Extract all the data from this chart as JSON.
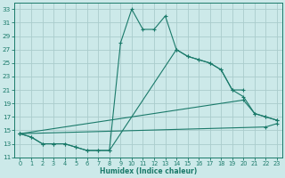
{
  "xlabel": "Humidex (Indice chaleur)",
  "ylabel": "",
  "bg_color": "#cce9e9",
  "grid_color": "#aacccc",
  "line_color": "#1a7a6a",
  "xlim": [
    -0.5,
    23.5
  ],
  "ylim": [
    11,
    34
  ],
  "xticks": [
    0,
    1,
    2,
    3,
    4,
    5,
    6,
    7,
    8,
    9,
    10,
    11,
    12,
    13,
    14,
    15,
    16,
    17,
    18,
    19,
    20,
    21,
    22,
    23
  ],
  "yticks": [
    11,
    13,
    15,
    17,
    19,
    21,
    23,
    25,
    27,
    29,
    31,
    33
  ],
  "series": [
    {
      "x": [
        0,
        1,
        2,
        3,
        4,
        5,
        6,
        7,
        8,
        9,
        10,
        11,
        12,
        13,
        14,
        15,
        16,
        17,
        18,
        19,
        20
      ],
      "y": [
        14.5,
        14,
        13,
        13,
        13,
        12.5,
        12,
        12,
        12,
        28,
        33,
        30,
        30,
        32,
        27,
        26,
        25.5,
        25,
        24,
        21,
        21
      ]
    },
    {
      "x": [
        0,
        1,
        2,
        3,
        4,
        5,
        6,
        7,
        8,
        14,
        15,
        16,
        17,
        18,
        19,
        20,
        21,
        22,
        23
      ],
      "y": [
        14.5,
        14,
        13,
        13,
        13,
        12.5,
        12,
        12,
        12,
        27,
        26,
        25.5,
        25,
        24,
        21,
        20,
        17.5,
        17,
        16.5
      ]
    },
    {
      "x": [
        0,
        20,
        21,
        22,
        23
      ],
      "y": [
        14.5,
        19.5,
        17.5,
        17,
        16.5
      ]
    },
    {
      "x": [
        0,
        22,
        23
      ],
      "y": [
        14.5,
        15.5,
        16
      ]
    }
  ]
}
